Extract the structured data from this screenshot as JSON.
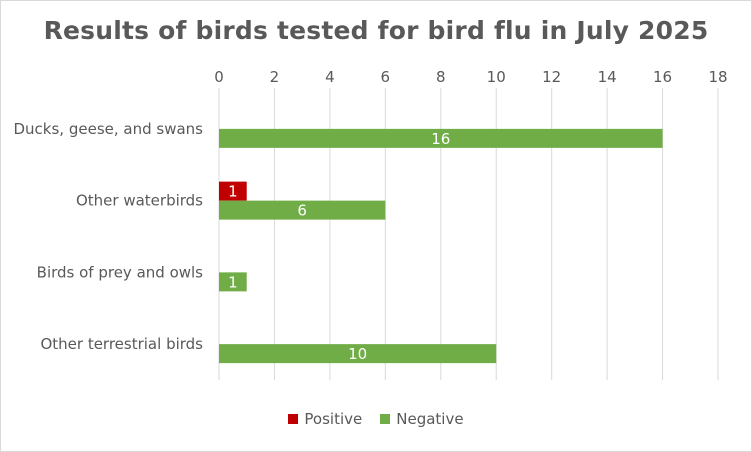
{
  "chart_data": {
    "type": "bar",
    "orientation": "horizontal",
    "title": "Results of birds tested for bird flu in July 2025",
    "categories": [
      "Ducks, geese, and swans",
      "Other waterbirds",
      "Birds of prey and owls",
      "Other terrestrial birds"
    ],
    "series": [
      {
        "name": "Positive",
        "color": "#c00000",
        "values": [
          0,
          1,
          0,
          0
        ]
      },
      {
        "name": "Negative",
        "color": "#70ad47",
        "values": [
          16,
          6,
          1,
          10
        ]
      }
    ],
    "xlim": [
      0,
      18
    ],
    "x_ticks": [
      "0",
      "2",
      "4",
      "6",
      "8",
      "10",
      "12",
      "14",
      "16",
      "18"
    ],
    "x_axis_position": "top",
    "grid": true,
    "data_labels": true,
    "legend_position": "bottom"
  }
}
